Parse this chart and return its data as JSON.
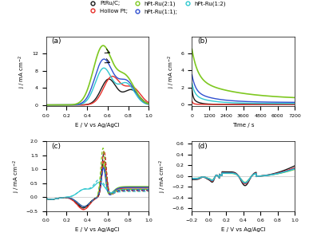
{
  "colors": {
    "black": "#1a1a1a",
    "red": "#e8302a",
    "green": "#7ec820",
    "blue": "#3050d0",
    "cyan": "#30c8d0"
  },
  "legend_labels": [
    "PtRu/C;",
    "Hollow Pt;",
    "hPt-Ru(2:1)",
    "hPt-Ru(1:1);",
    "hPt-Ru(1:2)"
  ],
  "fig_bg": "#ffffff"
}
